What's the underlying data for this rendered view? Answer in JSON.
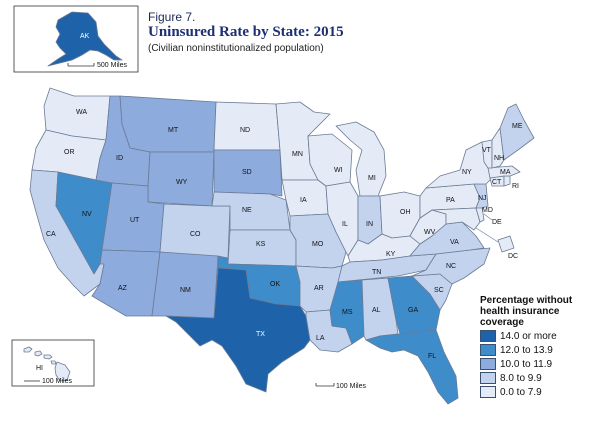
{
  "title": {
    "figure_number": "Figure 7.",
    "main": "Uninsured Rate by State: 2015",
    "subtitle": "(Civilian noninstitutionalized population)"
  },
  "colors": {
    "c14": "#1e63a9",
    "c12": "#3f8ccb",
    "c10": "#8dabdc",
    "c8": "#c3d3ee",
    "c0": "#e4ebf7",
    "border": "#6a7b95",
    "label": "#111111"
  },
  "legend": {
    "title_lines": [
      "Percentage without",
      "health insurance",
      "coverage"
    ],
    "items": [
      {
        "label": "14.0 or more",
        "color": "#1e63a9"
      },
      {
        "label": "12.0 to 13.9",
        "color": "#3f8ccb"
      },
      {
        "label": "10.0 to 11.9",
        "color": "#8dabdc"
      },
      {
        "label": "8.0 to 9.9",
        "color": "#c3d3ee"
      },
      {
        "label": "0.0 to 7.9",
        "color": "#e4ebf7"
      }
    ]
  },
  "scales": {
    "alaska": "500 Miles",
    "hawaii": "100 Miles",
    "mainland": "100 Miles"
  },
  "states": [
    {
      "abbr": "WA",
      "cls": "c0"
    },
    {
      "abbr": "OR",
      "cls": "c0"
    },
    {
      "abbr": "CA",
      "cls": "c8"
    },
    {
      "abbr": "NV",
      "cls": "c12"
    },
    {
      "abbr": "ID",
      "cls": "c10"
    },
    {
      "abbr": "MT",
      "cls": "c10"
    },
    {
      "abbr": "WY",
      "cls": "c10"
    },
    {
      "abbr": "UT",
      "cls": "c10"
    },
    {
      "abbr": "AZ",
      "cls": "c10"
    },
    {
      "abbr": "CO",
      "cls": "c8"
    },
    {
      "abbr": "NM",
      "cls": "c10"
    },
    {
      "abbr": "ND",
      "cls": "c0"
    },
    {
      "abbr": "SD",
      "cls": "c10"
    },
    {
      "abbr": "NE",
      "cls": "c8"
    },
    {
      "abbr": "KS",
      "cls": "c8"
    },
    {
      "abbr": "OK",
      "cls": "c12"
    },
    {
      "abbr": "TX",
      "cls": "c14"
    },
    {
      "abbr": "MN",
      "cls": "c0"
    },
    {
      "abbr": "IA",
      "cls": "c0"
    },
    {
      "abbr": "MO",
      "cls": "c8"
    },
    {
      "abbr": "AR",
      "cls": "c8"
    },
    {
      "abbr": "LA",
      "cls": "c8"
    },
    {
      "abbr": "WI",
      "cls": "c0"
    },
    {
      "abbr": "IL",
      "cls": "c0"
    },
    {
      "abbr": "MI",
      "cls": "c0"
    },
    {
      "abbr": "IN",
      "cls": "c8"
    },
    {
      "abbr": "OH",
      "cls": "c0"
    },
    {
      "abbr": "KY",
      "cls": "c0"
    },
    {
      "abbr": "TN",
      "cls": "c8"
    },
    {
      "abbr": "MS",
      "cls": "c12"
    },
    {
      "abbr": "AL",
      "cls": "c8"
    },
    {
      "abbr": "GA",
      "cls": "c12"
    },
    {
      "abbr": "FL",
      "cls": "c12"
    },
    {
      "abbr": "SC",
      "cls": "c8"
    },
    {
      "abbr": "NC",
      "cls": "c8"
    },
    {
      "abbr": "VA",
      "cls": "c8"
    },
    {
      "abbr": "WV",
      "cls": "c0"
    },
    {
      "abbr": "PA",
      "cls": "c0"
    },
    {
      "abbr": "NY",
      "cls": "c0"
    },
    {
      "abbr": "VT",
      "cls": "c0"
    },
    {
      "abbr": "NH",
      "cls": "c0"
    },
    {
      "abbr": "ME",
      "cls": "c8"
    },
    {
      "abbr": "MA",
      "cls": "c0"
    },
    {
      "abbr": "RI",
      "cls": "c0"
    },
    {
      "abbr": "CT",
      "cls": "c0"
    },
    {
      "abbr": "NJ",
      "cls": "c8"
    },
    {
      "abbr": "DE",
      "cls": "c0"
    },
    {
      "abbr": "MD",
      "cls": "c0"
    },
    {
      "abbr": "DC",
      "cls": "c0"
    },
    {
      "abbr": "AK",
      "cls": "c14"
    },
    {
      "abbr": "HI",
      "cls": "c0"
    }
  ]
}
